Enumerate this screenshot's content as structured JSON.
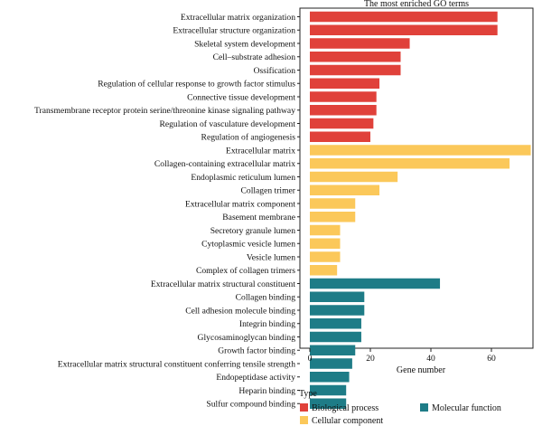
{
  "chart_data": {
    "type": "bar",
    "orientation": "horizontal",
    "title": "The most enriched GO terms",
    "xlabel": "Gene number",
    "ylabel": "",
    "xlim": [
      0,
      74
    ],
    "xticks": [
      0,
      20,
      40,
      60
    ],
    "grid": false,
    "legend_title": "Type",
    "legend_position": "bottom-left",
    "colors": {
      "Biological process": "#e0413a",
      "Cellular component": "#fbc85a",
      "Molecular function": "#1e7c87"
    },
    "legend": [
      {
        "name": "Biological process"
      },
      {
        "name": "Molecular function"
      },
      {
        "name": "Cellular component"
      }
    ],
    "categories": [
      "Extracellular matrix organization",
      "Extracellular structure organization",
      "Skeletal system development",
      "Cell–substrate adhesion",
      "Ossification",
      "Regulation of cellular response to growth factor stimulus",
      "Connective tissue development",
      "Transmembrane receptor protein serine/threonine kinase signaling pathway",
      "Regulation of vasculature development",
      "Regulation of angiogenesis",
      "Extracellular matrix",
      "Collagen-containing extracellular matrix",
      "Endoplasmic reticulum lumen",
      "Collagen trimer",
      "Extracellular matrix component",
      "Basement membrane",
      "Secretory granule lumen",
      "Cytoplasmic vesicle lumen",
      "Vesicle lumen",
      "Complex of collagen trimers",
      "Extracellular matrix structural constituent",
      "Collagen binding",
      "Cell adhesion molecule binding",
      "Integrin binding",
      "Glycosaminoglycan binding",
      "Growth factor binding",
      "Extracellular matrix structural constituent conferring tensile strength",
      "Endopeptidase activity",
      "Heparin binding",
      "Sulfur compound binding"
    ],
    "values": [
      62,
      62,
      33,
      30,
      30,
      23,
      22,
      22,
      21,
      20,
      73,
      66,
      29,
      23,
      15,
      15,
      10,
      10,
      10,
      9,
      43,
      18,
      18,
      17,
      17,
      15,
      14,
      13,
      12,
      12
    ],
    "groups": [
      "Biological process",
      "Biological process",
      "Biological process",
      "Biological process",
      "Biological process",
      "Biological process",
      "Biological process",
      "Biological process",
      "Biological process",
      "Biological process",
      "Cellular component",
      "Cellular component",
      "Cellular component",
      "Cellular component",
      "Cellular component",
      "Cellular component",
      "Cellular component",
      "Cellular component",
      "Cellular component",
      "Cellular component",
      "Molecular function",
      "Molecular function",
      "Molecular function",
      "Molecular function",
      "Molecular function",
      "Molecular function",
      "Molecular function",
      "Molecular function",
      "Molecular function",
      "Molecular function"
    ]
  }
}
